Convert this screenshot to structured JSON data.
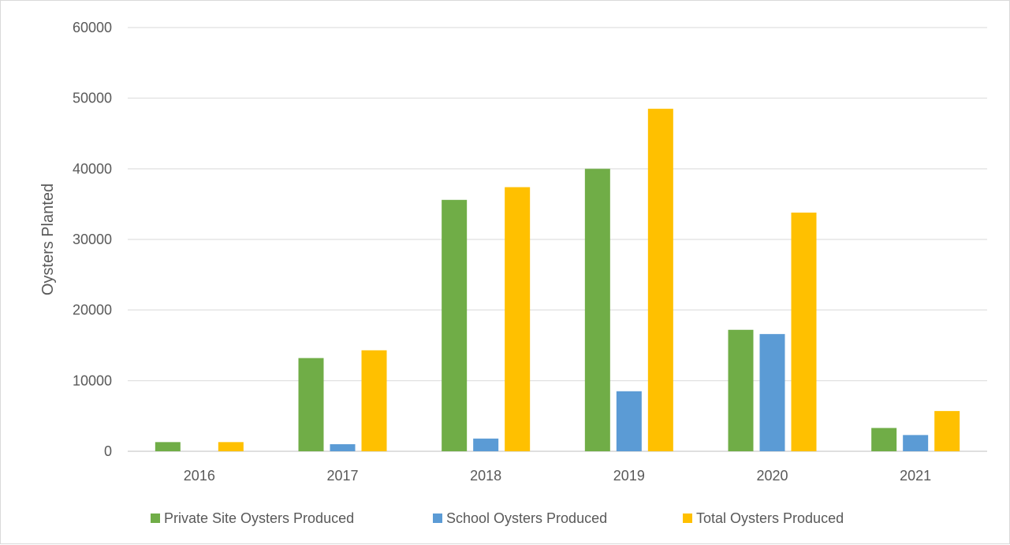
{
  "chart_data": {
    "type": "bar",
    "title": "",
    "xlabel": "",
    "ylabel": "Oysters Planted",
    "ylim": [
      0,
      60000
    ],
    "yticks": [
      0,
      10000,
      20000,
      30000,
      40000,
      50000,
      60000
    ],
    "grid": true,
    "legend_position": "bottom",
    "categories": [
      "2016",
      "2017",
      "2018",
      "2019",
      "2020",
      "2021"
    ],
    "series": [
      {
        "name": "Private Site Oysters Produced",
        "color": "#70ad47",
        "values": [
          1300,
          13200,
          35600,
          40000,
          17200,
          3300
        ]
      },
      {
        "name": "School Oysters Produced",
        "color": "#5b9bd5",
        "values": [
          0,
          1000,
          1800,
          8500,
          16600,
          2300
        ]
      },
      {
        "name": "Total Oysters Produced",
        "color": "#ffc000",
        "values": [
          1300,
          14300,
          37400,
          48500,
          33800,
          5700
        ]
      }
    ]
  }
}
